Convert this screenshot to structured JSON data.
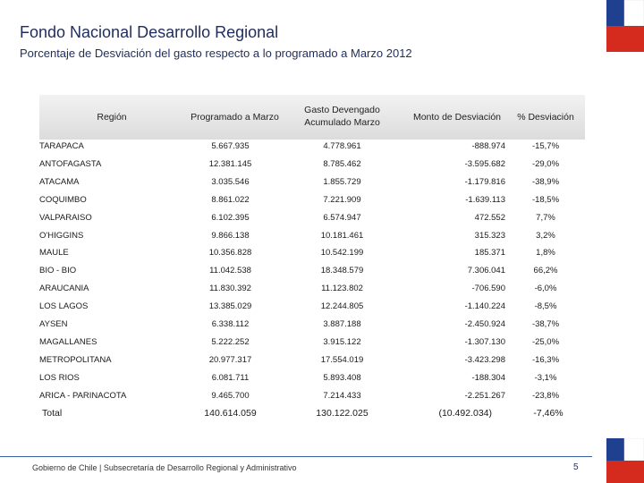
{
  "header": {
    "title": "Fondo Nacional Desarrollo Regional",
    "subtitle": "Porcentaje de Desviación del gasto respecto a lo programado a Marzo 2012"
  },
  "table": {
    "columns": {
      "region": "Región",
      "programado": "Programado a Marzo",
      "gasto_line1": "Gasto Devengado",
      "gasto_line2": "Acumulado Marzo",
      "monto": "Monto de Desviación",
      "pct": "% Desviación"
    },
    "rows": [
      {
        "region": "TARAPACA",
        "programado": "5.667.935",
        "gasto": "4.778.961",
        "monto": "-888.974",
        "pct": "-15,7%"
      },
      {
        "region": "ANTOFAGASTA",
        "programado": "12.381.145",
        "gasto": "8.785.462",
        "monto": "-3.595.682",
        "pct": "-29,0%"
      },
      {
        "region": "ATACAMA",
        "programado": "3.035.546",
        "gasto": "1.855.729",
        "monto": "-1.179.816",
        "pct": "-38,9%"
      },
      {
        "region": "COQUIMBO",
        "programado": "8.861.022",
        "gasto": "7.221.909",
        "monto": "-1.639.113",
        "pct": "-18,5%"
      },
      {
        "region": "VALPARAISO",
        "programado": "6.102.395",
        "gasto": "6.574.947",
        "monto": "472.552",
        "pct": "7,7%"
      },
      {
        "region": "O'HIGGINS",
        "programado": "9.866.138",
        "gasto": "10.181.461",
        "monto": "315.323",
        "pct": "3,2%"
      },
      {
        "region": "MAULE",
        "programado": "10.356.828",
        "gasto": "10.542.199",
        "monto": "185.371",
        "pct": "1,8%"
      },
      {
        "region": "BIO - BIO",
        "programado": "11.042.538",
        "gasto": "18.348.579",
        "monto": "7.306.041",
        "pct": "66,2%"
      },
      {
        "region": "ARAUCANIA",
        "programado": "11.830.392",
        "gasto": "11.123.802",
        "monto": "-706.590",
        "pct": "-6,0%"
      },
      {
        "region": "LOS LAGOS",
        "programado": "13.385.029",
        "gasto": "12.244.805",
        "monto": "-1.140.224",
        "pct": "-8,5%"
      },
      {
        "region": "AYSEN",
        "programado": "6.338.112",
        "gasto": "3.887.188",
        "monto": "-2.450.924",
        "pct": "-38,7%"
      },
      {
        "region": "MAGALLANES",
        "programado": "5.222.252",
        "gasto": "3.915.122",
        "monto": "-1.307.130",
        "pct": "-25,0%"
      },
      {
        "region": "METROPOLITANA",
        "programado": "20.977.317",
        "gasto": "17.554.019",
        "monto": "-3.423.298",
        "pct": "-16,3%"
      },
      {
        "region": "LOS RIOS",
        "programado": "6.081.711",
        "gasto": "5.893.408",
        "monto": "-188.304",
        "pct": "-3,1%"
      },
      {
        "region": "ARICA - PARINACOTA",
        "programado": "9.465.700",
        "gasto": "7.214.433",
        "monto": "-2.251.267",
        "pct": "-23,8%"
      }
    ],
    "total": {
      "region": "Total",
      "programado": "140.614.059",
      "gasto": "130.122.025",
      "monto": "(10.492.034)",
      "pct": "-7,46%"
    }
  },
  "footer": {
    "text": "Gobierno de Chile | Subsecretaría de Desarrollo Regional y Administrativo",
    "page": "5"
  },
  "colors": {
    "blue": "#1f3f8f",
    "red": "#d52b1e",
    "text": "#1f2d5c"
  }
}
